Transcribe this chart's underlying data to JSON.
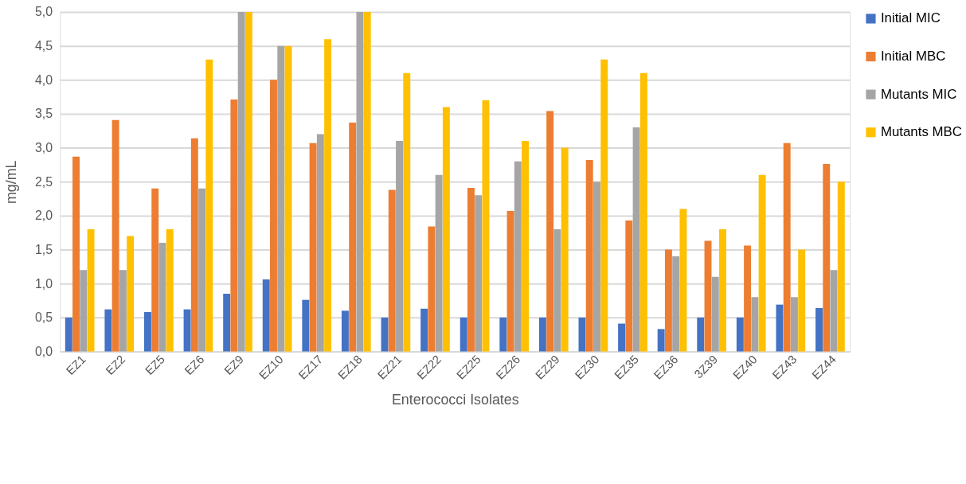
{
  "chart_data": {
    "type": "bar",
    "xlabel": "Enterococci Isolates",
    "ylabel": "mg/mL",
    "categories": [
      "EZ1",
      "EZ2",
      "EZ5",
      "EZ6",
      "EZ9",
      "EZ10",
      "EZ17",
      "EZ18",
      "EZ21",
      "EZ22",
      "EZ25",
      "EZ26",
      "EZ29",
      "EZ30",
      "EZ35",
      "EZ36",
      "3Z39",
      "EZ40",
      "EZ43",
      "EZ44"
    ],
    "series": [
      {
        "name": "Initial MIC",
        "color": "#4472c4",
        "values": [
          0.5,
          0.62,
          0.58,
          0.62,
          0.85,
          1.06,
          0.76,
          0.6,
          0.5,
          0.63,
          0.5,
          0.5,
          0.5,
          0.5,
          0.41,
          0.33,
          0.5,
          0.5,
          0.69,
          0.64
        ]
      },
      {
        "name": "Initial MBC",
        "color": "#ed7d31",
        "values": [
          2.87,
          3.41,
          2.4,
          3.14,
          3.71,
          4.0,
          3.07,
          3.37,
          2.38,
          1.84,
          2.41,
          2.07,
          3.54,
          2.82,
          1.93,
          1.5,
          1.63,
          1.56,
          3.07,
          2.76
        ]
      },
      {
        "name": "Mutants MIC",
        "color": "#a5a5a5",
        "values": [
          1.2,
          1.2,
          1.6,
          2.4,
          5.0,
          4.5,
          3.2,
          5.0,
          3.1,
          2.6,
          2.3,
          2.8,
          1.8,
          2.5,
          3.3,
          1.4,
          1.1,
          0.8,
          0.8,
          1.2
        ]
      },
      {
        "name": "Mutants MBC",
        "color": "#ffc000",
        "values": [
          1.8,
          1.7,
          1.8,
          4.3,
          5.0,
          4.5,
          4.6,
          5.0,
          4.1,
          3.6,
          3.7,
          3.1,
          3.0,
          4.3,
          4.1,
          2.1,
          1.8,
          2.6,
          1.5,
          2.5
        ]
      }
    ],
    "ylim": [
      0,
      5
    ],
    "yticks": [
      {
        "value": 0,
        "label": "0,0"
      },
      {
        "value": 0.5,
        "label": "0,5"
      },
      {
        "value": 1,
        "label": "1,0"
      },
      {
        "value": 1.5,
        "label": "1,5"
      },
      {
        "value": 2,
        "label": "2,0"
      },
      {
        "value": 2.5,
        "label": "2,5"
      },
      {
        "value": 3,
        "label": "3,0"
      },
      {
        "value": 3.5,
        "label": "3,5"
      },
      {
        "value": 4,
        "label": "4,0"
      },
      {
        "value": 4.5,
        "label": "4,5"
      },
      {
        "value": 5,
        "label": "5,0"
      }
    ],
    "grid": "y",
    "legend": "right"
  }
}
